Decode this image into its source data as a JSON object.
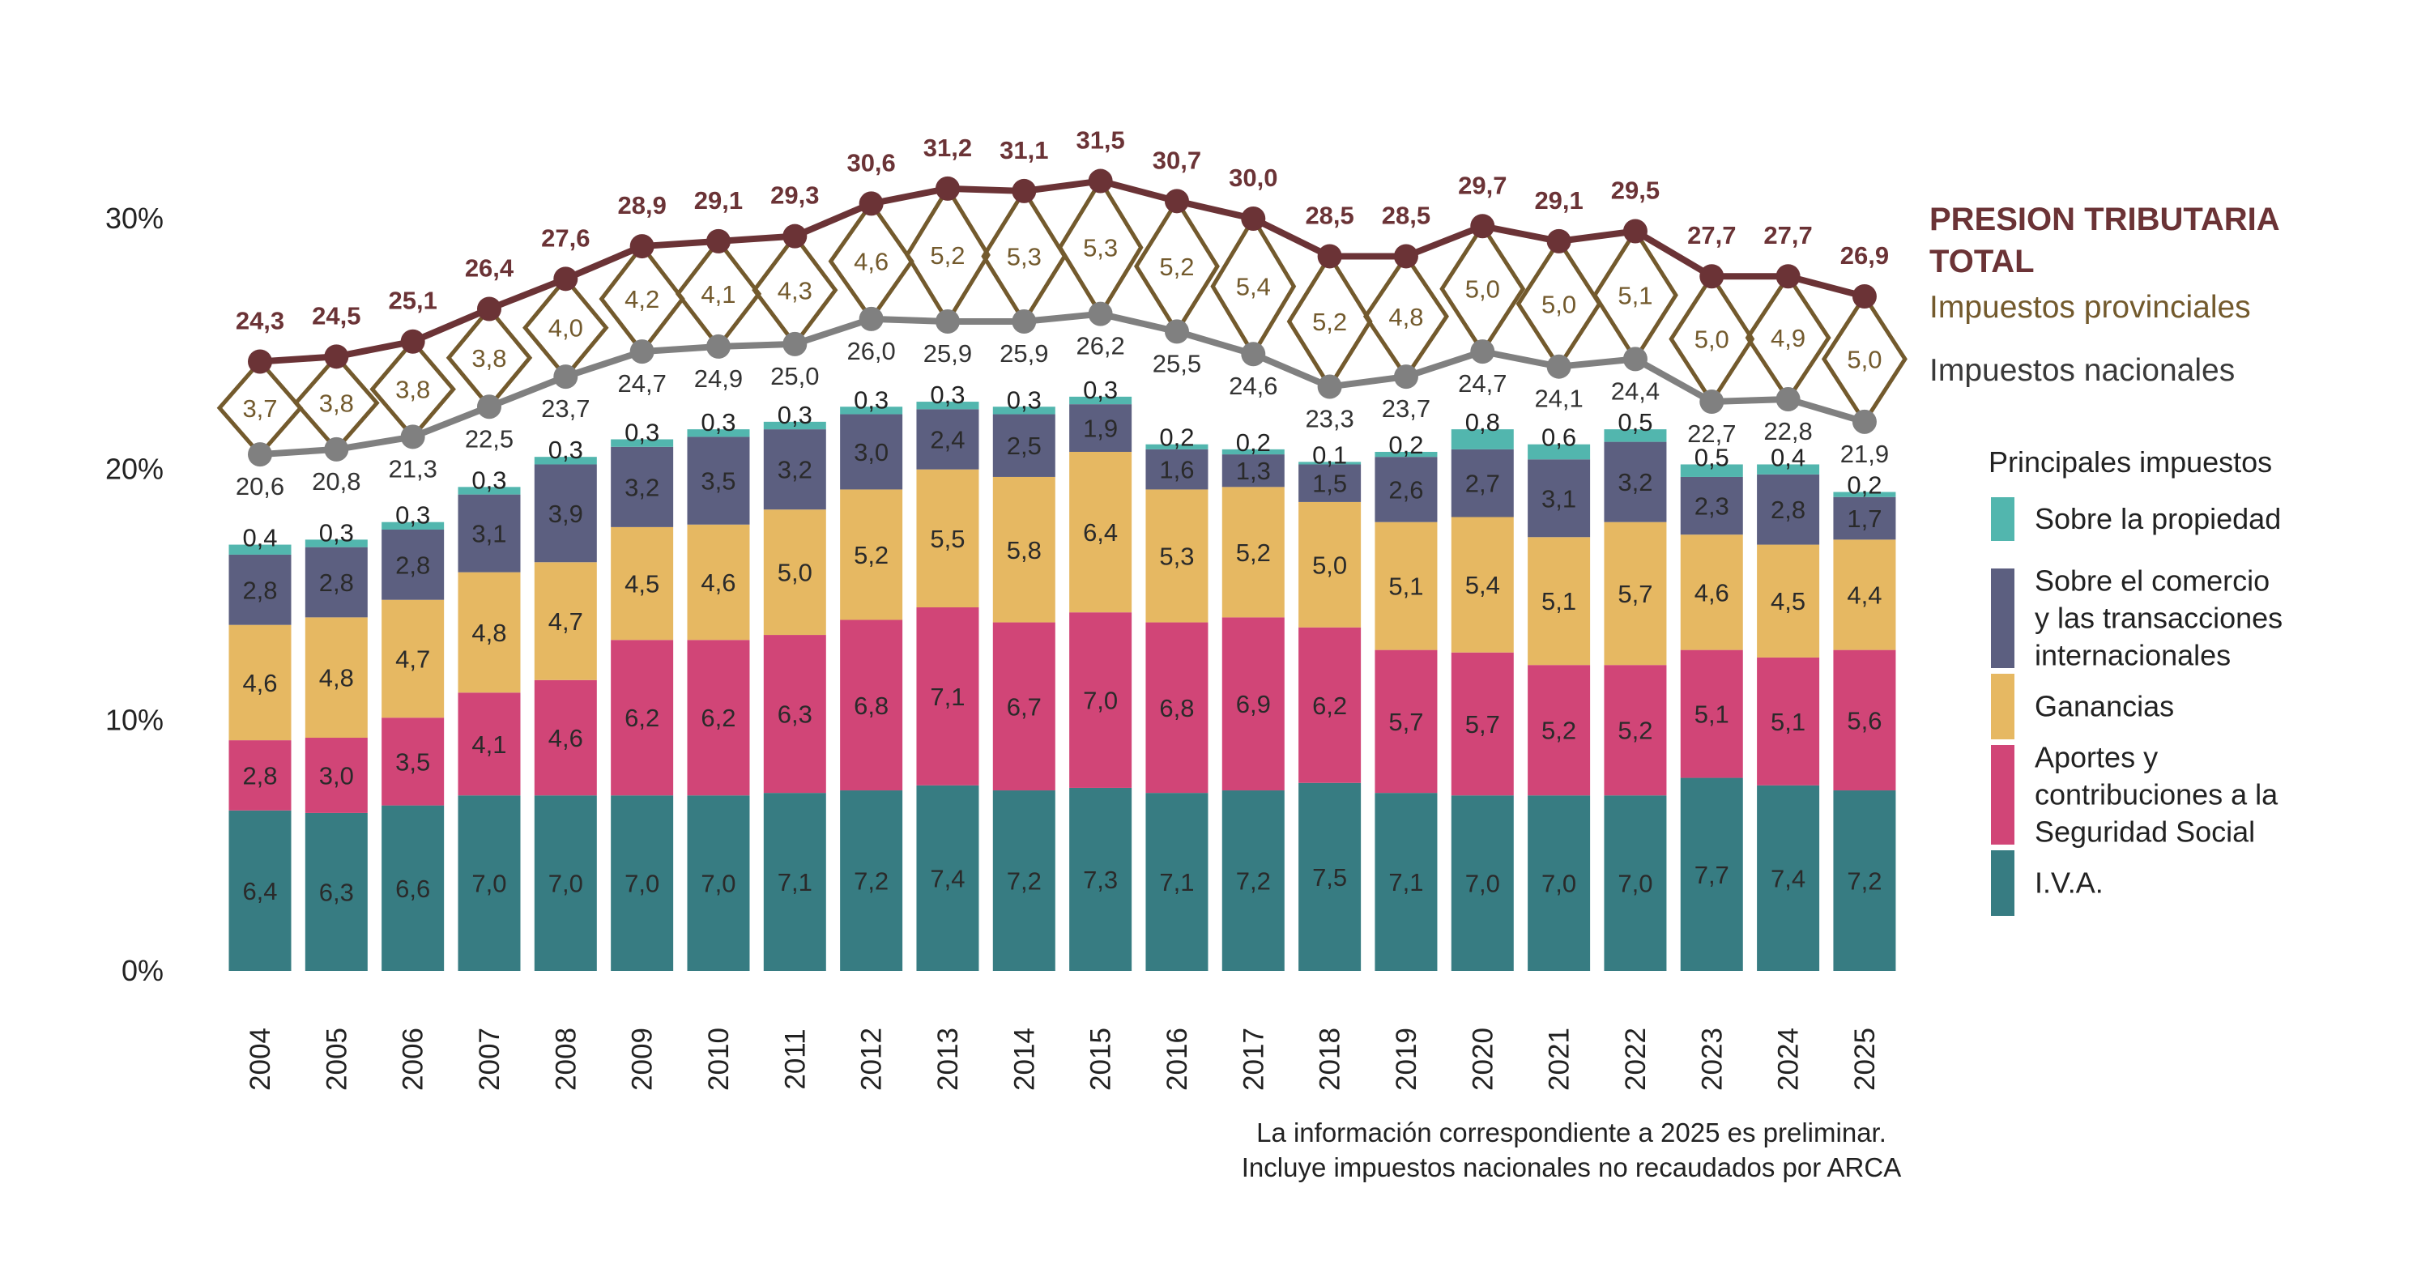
{
  "chart_data": {
    "type": "bar",
    "stacked": true,
    "categories": [
      "2004",
      "2005",
      "2006",
      "2007",
      "2008",
      "2009",
      "2010",
      "2011",
      "2012",
      "2013",
      "2014",
      "2015",
      "2016",
      "2017",
      "2018",
      "2019",
      "2020",
      "2021",
      "2022",
      "2023",
      "2024",
      "2025"
    ],
    "ylim": [
      0,
      30
    ],
    "y_ticks": [
      "0%",
      "10%",
      "20%",
      "30%"
    ],
    "y_tick_values": [
      0,
      10,
      20,
      30
    ],
    "grid": false,
    "series": [
      {
        "name": "I.V.A.",
        "color": "#377C82",
        "values": [
          6.4,
          6.3,
          6.6,
          7.0,
          7.0,
          7.0,
          7.0,
          7.1,
          7.2,
          7.4,
          7.2,
          7.3,
          7.1,
          7.2,
          7.5,
          7.1,
          7.0,
          7.0,
          7.0,
          7.7,
          7.4,
          7.2
        ]
      },
      {
        "name": "Aportes y\n contribuciones a la\n Seguridad Social",
        "color": "#D14577",
        "values": [
          2.8,
          3.0,
          3.5,
          4.1,
          4.6,
          6.2,
          6.2,
          6.3,
          6.8,
          7.1,
          6.7,
          7.0,
          6.8,
          6.9,
          6.2,
          5.7,
          5.7,
          5.2,
          5.2,
          5.1,
          5.1,
          5.6
        ]
      },
      {
        "name": "Ganancias",
        "color": "#E6B862",
        "values": [
          4.6,
          4.8,
          4.7,
          4.8,
          4.7,
          4.5,
          4.6,
          5.0,
          5.2,
          5.5,
          5.8,
          6.4,
          5.3,
          5.2,
          5.0,
          5.1,
          5.4,
          5.1,
          5.7,
          4.6,
          4.5,
          4.4
        ]
      },
      {
        "name": "Sobre el comercio\n y las transacciones\n internacionales",
        "color": "#5C5F80",
        "values": [
          2.8,
          2.8,
          2.8,
          3.1,
          3.9,
          3.2,
          3.5,
          3.2,
          3.0,
          2.4,
          2.5,
          1.9,
          1.6,
          1.3,
          1.5,
          2.6,
          2.7,
          3.1,
          3.2,
          2.3,
          2.8,
          1.7
        ]
      },
      {
        "name": "Sobre la propiedad",
        "color": "#52B6AE",
        "values": [
          0.4,
          0.3,
          0.3,
          0.3,
          0.3,
          0.3,
          0.3,
          0.3,
          0.3,
          0.3,
          0.3,
          0.3,
          0.2,
          0.2,
          0.1,
          0.2,
          0.8,
          0.6,
          0.5,
          0.5,
          0.4,
          0.2
        ]
      }
    ],
    "lines": [
      {
        "name": "PRESION TRIBUTARIA\n TOTAL",
        "color": "#6B3336",
        "values": [
          24.3,
          24.5,
          25.1,
          26.4,
          27.6,
          28.9,
          29.1,
          29.3,
          30.6,
          31.2,
          31.1,
          31.5,
          30.7,
          30.0,
          28.5,
          28.5,
          29.7,
          29.1,
          29.5,
          27.7,
          27.7,
          26.9
        ]
      },
      {
        "name": "Impuestos provinciales",
        "color": "#735A2D",
        "marker": "diamond",
        "values": [
          3.7,
          3.8,
          3.8,
          3.8,
          4.0,
          4.2,
          4.1,
          4.3,
          4.6,
          5.2,
          5.3,
          5.3,
          5.2,
          5.4,
          5.2,
          4.8,
          5.0,
          5.0,
          5.1,
          5.0,
          4.9,
          5.0
        ]
      },
      {
        "name": "Impuestos nacionales",
        "color": "#808080",
        "values": [
          20.6,
          20.8,
          21.3,
          22.5,
          23.7,
          24.7,
          24.9,
          25.0,
          26.0,
          25.9,
          25.9,
          26.2,
          25.5,
          24.6,
          23.3,
          23.7,
          24.7,
          24.1,
          24.4,
          22.7,
          22.8,
          21.9
        ]
      }
    ],
    "legend_title": "Principales impuestos",
    "legend_placement": "right",
    "decimal_separator": ",",
    "notes": [
      "La información correspondiente a 2025 es preliminar.",
      "Incluye impuestos nacionales no recaudados por ARCA"
    ]
  }
}
